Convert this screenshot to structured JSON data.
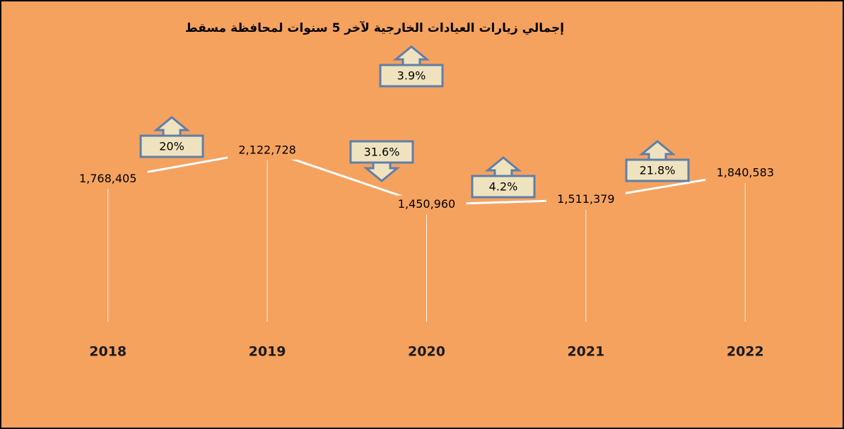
{
  "chart_data": {
    "type": "line",
    "title": "إجمالي زيارات العيادات الخارجية لآخر 5 سنوات لمحافظة مسقط",
    "categories": [
      "2018",
      "2019",
      "2020",
      "2021",
      "2022"
    ],
    "values": [
      1768405,
      2122728,
      1450960,
      1511379,
      1840583
    ],
    "value_labels": [
      "1,768,405",
      "2,122,728",
      "1,450,960",
      "1,511,379",
      "1,840,583"
    ],
    "ylim": [
      0,
      3700000
    ],
    "line_color": "#ffffff",
    "background": "#f5a25f",
    "drop_lines": true,
    "annotations": [
      {
        "text": "3.9%",
        "direction": "up"
      },
      {
        "text": "20%",
        "direction": "up"
      },
      {
        "text": "31.6%",
        "direction": "down"
      },
      {
        "text": "4.2%",
        "direction": "up"
      },
      {
        "text": "21.8%",
        "direction": "up"
      }
    ]
  }
}
